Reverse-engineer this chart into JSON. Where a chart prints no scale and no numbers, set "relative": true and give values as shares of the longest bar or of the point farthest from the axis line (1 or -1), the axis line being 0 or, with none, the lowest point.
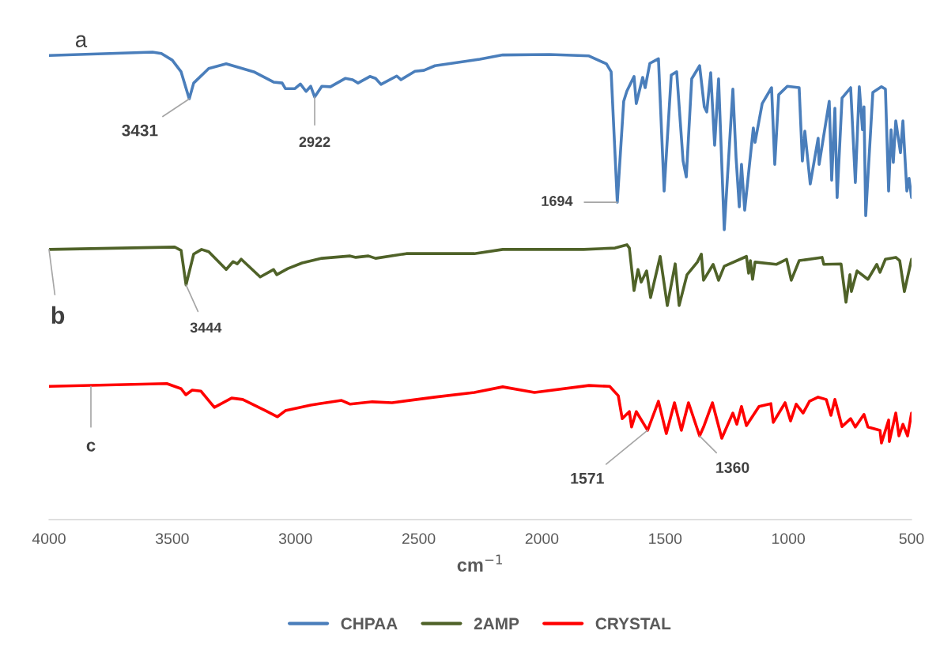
{
  "chart_data": {
    "type": "line",
    "relative": true,
    "xlabel": "cm$^{−1}$",
    "xlim": [
      4000,
      500
    ],
    "xticks": [
      4000,
      3500,
      3000,
      2500,
      2000,
      1500,
      1000,
      500
    ],
    "grid": false,
    "legend": "bottom",
    "marker": "none",
    "line_style": "solid",
    "series": [
      {
        "name": "CHPAA",
        "color": "#4a7ebb",
        "x": [
          4000,
          3580,
          3544,
          3500,
          3464,
          3431,
          3413,
          3352,
          3281,
          3169,
          3089,
          3054,
          3041,
          3002,
          2980,
          2957,
          2938,
          2922,
          2893,
          2858,
          2797,
          2768,
          2746,
          2698,
          2675,
          2653,
          2589,
          2572,
          2515,
          2479,
          2434,
          2252,
          2159,
          1969,
          1809,
          1738,
          1719,
          1694,
          1668,
          1655,
          1626,
          1617,
          1591,
          1581,
          1562,
          1527,
          1504,
          1475,
          1453,
          1427,
          1414,
          1392,
          1360,
          1341,
          1331,
          1315,
          1299,
          1283,
          1260,
          1225,
          1212,
          1199,
          1190,
          1177,
          1142,
          1135,
          1106,
          1068,
          1055,
          1039,
          1004,
          956,
          943,
          933,
          911,
          879,
          875,
          834,
          824,
          811,
          802,
          782,
          747,
          728,
          712,
          699,
          693,
          686,
          657,
          622,
          606,
          593,
          583,
          574,
          564,
          545,
          535,
          519,
          510,
          500
        ],
        "values": [
          0.993,
          1,
          0.997,
          0.983,
          0.958,
          0.9,
          0.934,
          0.965,
          0.975,
          0.958,
          0.936,
          0.934,
          0.922,
          0.922,
          0.932,
          0.916,
          0.927,
          0.904,
          0.927,
          0.926,
          0.944,
          0.941,
          0.934,
          0.948,
          0.944,
          0.931,
          0.949,
          0.941,
          0.959,
          0.961,
          0.971,
          0.985,
          0.994,
          0.995,
          0.992,
          0.975,
          0.958,
          0.679,
          0.895,
          0.917,
          0.948,
          0.89,
          0.946,
          0.924,
          0.976,
          0.986,
          0.703,
          0.951,
          0.958,
          0.767,
          0.733,
          0.943,
          0.971,
          0.883,
          0.872,
          0.956,
          0.801,
          0.943,
          0.62,
          0.921,
          0.774,
          0.669,
          0.76,
          0.662,
          0.838,
          0.807,
          0.89,
          0.924,
          0.76,
          0.909,
          0.927,
          0.924,
          0.767,
          0.831,
          0.718,
          0.816,
          0.76,
          0.895,
          0.726,
          0.88,
          0.689,
          0.902,
          0.924,
          0.721,
          0.926,
          0.834,
          0.883,
          0.65,
          0.914,
          0.926,
          0.921,
          0.703,
          0.834,
          0.764,
          0.853,
          0.785,
          0.853,
          0.703,
          0.73,
          0.689
        ]
      },
      {
        "name": "2AMP",
        "color": "#4f6228",
        "x": [
          4000,
          3490,
          3464,
          3444,
          3413,
          3381,
          3352,
          3281,
          3253,
          3236,
          3220,
          3143,
          3089,
          3076,
          3031,
          2973,
          2893,
          2778,
          2755,
          2704,
          2675,
          2550,
          2332,
          2274,
          2159,
          1924,
          1831,
          1703,
          1655,
          1645,
          1626,
          1610,
          1597,
          1575,
          1559,
          1520,
          1491,
          1459,
          1443,
          1411,
          1369,
          1353,
          1344,
          1305,
          1283,
          1260,
          1170,
          1161,
          1154,
          1145,
          1135,
          1049,
          1007,
          988,
          956,
          863,
          856,
          786,
          766,
          750,
          744,
          721,
          677,
          641,
          628,
          606,
          564,
          548,
          529,
          500
        ],
        "values": [
          0.578,
          0.583,
          0.576,
          0.502,
          0.568,
          0.578,
          0.573,
          0.535,
          0.552,
          0.547,
          0.557,
          0.519,
          0.535,
          0.524,
          0.537,
          0.549,
          0.559,
          0.564,
          0.561,
          0.564,
          0.559,
          0.569,
          0.569,
          0.569,
          0.578,
          0.578,
          0.578,
          0.581,
          0.588,
          0.581,
          0.49,
          0.535,
          0.508,
          0.532,
          0.475,
          0.563,
          0.458,
          0.547,
          0.458,
          0.524,
          0.551,
          0.568,
          0.512,
          0.546,
          0.512,
          0.542,
          0.563,
          0.527,
          0.554,
          0.514,
          0.551,
          0.546,
          0.557,
          0.512,
          0.554,
          0.561,
          0.546,
          0.547,
          0.465,
          0.524,
          0.488,
          0.532,
          0.514,
          0.546,
          0.529,
          0.557,
          0.561,
          0.554,
          0.488,
          0.557
        ]
      },
      {
        "name": "CRYSTAL",
        "color": "#ff0000",
        "x": [
          4000,
          3522,
          3464,
          3445,
          3419,
          3384,
          3329,
          3259,
          3214,
          3121,
          3073,
          3041,
          2938,
          2903,
          2813,
          2778,
          2688,
          2608,
          2434,
          2274,
          2159,
          2030,
          1809,
          1725,
          1690,
          1674,
          1645,
          1636,
          1617,
          1571,
          1527,
          1495,
          1462,
          1434,
          1405,
          1360,
          1344,
          1308,
          1270,
          1225,
          1209,
          1190,
          1170,
          1119,
          1071,
          1061,
          1013,
          991,
          968,
          940,
          914,
          879,
          846,
          827,
          811,
          782,
          747,
          728,
          693,
          677,
          628,
          622,
          593,
          590,
          564,
          551,
          535,
          516,
          500
        ],
        "values": [
          0.285,
          0.291,
          0.28,
          0.267,
          0.277,
          0.275,
          0.24,
          0.26,
          0.257,
          0.233,
          0.22,
          0.233,
          0.245,
          0.248,
          0.255,
          0.247,
          0.252,
          0.25,
          0.262,
          0.272,
          0.284,
          0.272,
          0.287,
          0.285,
          0.265,
          0.216,
          0.231,
          0.198,
          0.231,
          0.191,
          0.253,
          0.184,
          0.25,
          0.191,
          0.25,
          0.179,
          0.198,
          0.25,
          0.174,
          0.228,
          0.204,
          0.242,
          0.201,
          0.242,
          0.248,
          0.208,
          0.25,
          0.211,
          0.247,
          0.228,
          0.253,
          0.262,
          0.257,
          0.223,
          0.257,
          0.199,
          0.216,
          0.198,
          0.225,
          0.198,
          0.191,
          0.164,
          0.213,
          0.167,
          0.228,
          0.179,
          0.204,
          0.179,
          0.228
        ]
      }
    ],
    "annotations": [
      "a",
      {
        "text": "3431",
        "x": 3431,
        "y": 0.9
      },
      {
        "text": "2922",
        "x": 2922,
        "y": 0.904
      },
      {
        "text": "1694",
        "x": 1694,
        "y": 0.679
      },
      {
        "text": "b",
        "x": 4000,
        "y": 0.578
      },
      {
        "text": "3444",
        "x": 3444,
        "y": 0.502
      },
      {
        "text": "c",
        "x": 3830,
        "y": 0.285
      },
      {
        "text": "1571",
        "x": 1571,
        "y": 0.191
      },
      {
        "text": "1360",
        "x": 1360,
        "y": 0.179
      }
    ]
  }
}
